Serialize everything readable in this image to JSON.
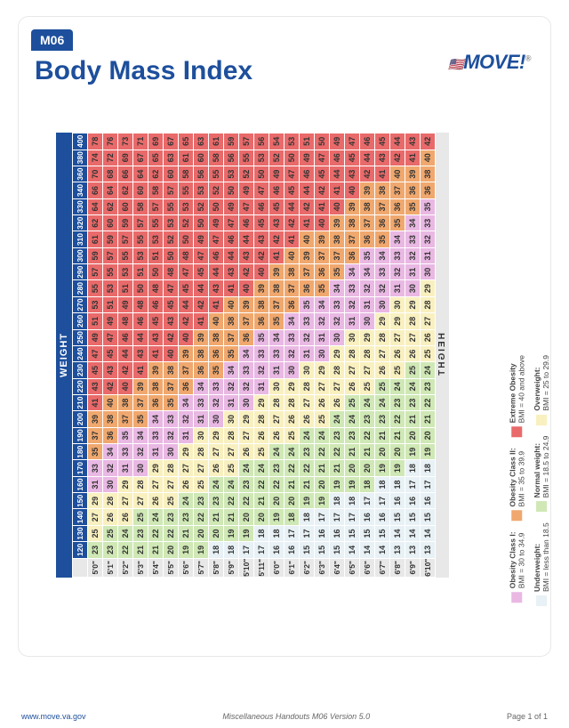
{
  "code": "M06",
  "title": "Body Mass Index",
  "logo_text": "MOVE!",
  "axis_weight_label": "WEIGHT",
  "axis_height_label": "HEIGHT",
  "footer": {
    "url": "www.move.va.gov",
    "center": "Miscellaneous Handouts    M06 Version 5.0",
    "page": "Page 1 of 1"
  },
  "weights": [
    120,
    130,
    140,
    150,
    160,
    170,
    180,
    190,
    200,
    210,
    220,
    230,
    240,
    250,
    260,
    270,
    280,
    290,
    300,
    310,
    320,
    330,
    340,
    360,
    380,
    400
  ],
  "heights": [
    "5'0\"",
    "5'1\"",
    "5'2\"",
    "5'3\"",
    "5'4\"",
    "5'5\"",
    "5'6\"",
    "5'7\"",
    "5'8\"",
    "5'9\"",
    "5'10\"",
    "5'11\"",
    "6'0\"",
    "6'1\"",
    "6'2\"",
    "6'3\"",
    "6'4\"",
    "6'5\"",
    "6'6\"",
    "6'7\"",
    "6'8\"",
    "6'9\"",
    "6'10\""
  ],
  "height_inches": [
    60,
    61,
    62,
    63,
    64,
    65,
    66,
    67,
    68,
    69,
    70,
    71,
    72,
    73,
    74,
    75,
    76,
    77,
    78,
    79,
    80,
    81,
    82
  ],
  "colors": {
    "underweight": "#e8f1f5",
    "normal": "#cfe8b5",
    "overweight": "#f9f0c0",
    "obesity1": "#e9b8e3",
    "obesity2": "#f0a86e",
    "extreme": "#e96a6a",
    "header_bg": "#1d4f9c",
    "grid_border": "#ffffff"
  },
  "legend": [
    {
      "key": "underweight",
      "title": "Underweight:",
      "sub": "BMI = less than 18.5"
    },
    {
      "key": "normal",
      "title": "Normal weight:",
      "sub": "BMI = 18.5 to 24.9"
    },
    {
      "key": "overweight",
      "title": "Overweight:",
      "sub": "BMI = 25 to 29.9"
    },
    {
      "key": "obesity1",
      "title": "Obesity Class I:",
      "sub": "BMI = 30 to 34.9"
    },
    {
      "key": "obesity2",
      "title": "Obesity Class II:",
      "sub": "BMI = 35 to 39.9"
    },
    {
      "key": "extreme",
      "title": "Extreme Obesity",
      "sub": "BMI = 40 and above"
    }
  ],
  "table": {
    "type": "heatmap-table",
    "cell_fontsize_pt": 7,
    "cell_fontweight": "bold",
    "cell_text_color": "#333333",
    "thresholds": [
      {
        "max": 18.4,
        "key": "underweight"
      },
      {
        "max": 24.9,
        "key": "normal"
      },
      {
        "max": 29.9,
        "key": "overweight"
      },
      {
        "max": 34.9,
        "key": "obesity1"
      },
      {
        "max": 39.9,
        "key": "obesity2"
      },
      {
        "max": 9999,
        "key": "extreme"
      }
    ]
  }
}
